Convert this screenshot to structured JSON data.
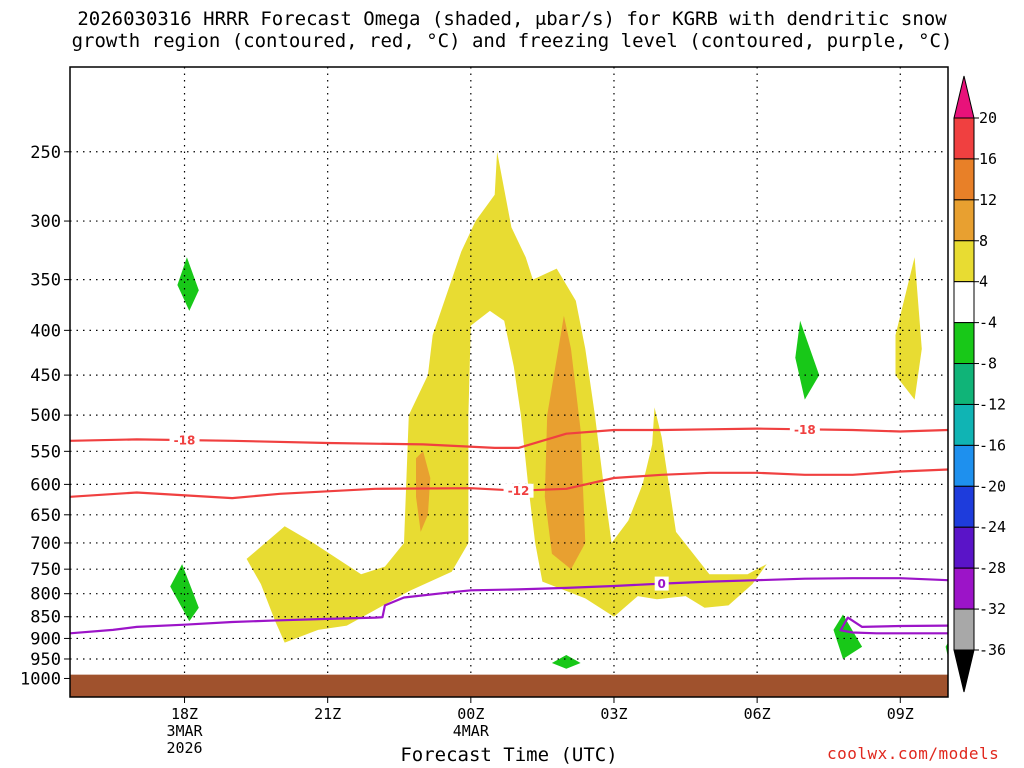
{
  "title": {
    "line1": "2026030316 HRRR Forecast Omega (shaded, μbar/s) for KGRB with dendritic snow",
    "line2": "growth region (contoured, red, °C) and freezing level (contoured, purple, °C)"
  },
  "footer": {
    "xlabel": "Forecast Time (UTC)",
    "credit": "coolwx.com/models"
  },
  "chart_data": {
    "type": "heatmap",
    "x_axis": {
      "label": "Forecast Time (UTC)",
      "range_hours_utc": [
        15.6,
        34.0
      ],
      "ticks": [
        {
          "hour": 18,
          "lines": [
            "18Z",
            "3MAR",
            "2026"
          ]
        },
        {
          "hour": 21,
          "lines": [
            "21Z"
          ]
        },
        {
          "hour": 24,
          "lines": [
            "00Z",
            "4MAR"
          ]
        },
        {
          "hour": 27,
          "lines": [
            "03Z"
          ]
        },
        {
          "hour": 30,
          "lines": [
            "06Z"
          ]
        },
        {
          "hour": 33,
          "lines": [
            "09Z"
          ]
        }
      ]
    },
    "y_axis": {
      "scale": "log",
      "units": "mb",
      "range": [
        1050,
        200
      ],
      "ticks": [
        250,
        300,
        350,
        400,
        450,
        500,
        550,
        600,
        650,
        700,
        750,
        800,
        850,
        900,
        950,
        1000
      ]
    },
    "grid": true,
    "colorbar": {
      "units": "μbar/s",
      "labels": [
        "20",
        "16",
        "12",
        "8",
        "4",
        "-4",
        "-8",
        "-12",
        "-16",
        "-20",
        "-24",
        "-28",
        "-32",
        "-36"
      ],
      "bins": [
        {
          "from": 20,
          "to": 24,
          "color": "#e8127a",
          "shape": "triangle"
        },
        {
          "from": 16,
          "to": 20,
          "color": "#f04040"
        },
        {
          "from": 12,
          "to": 16,
          "color": "#e88028"
        },
        {
          "from": 8,
          "to": 12,
          "color": "#e8a030"
        },
        {
          "from": 4,
          "to": 8,
          "color": "#e8dc32"
        },
        {
          "from": -4,
          "to": 4,
          "color": "#ffffff"
        },
        {
          "from": -8,
          "to": -4,
          "color": "#18c818"
        },
        {
          "from": -12,
          "to": -8,
          "color": "#10b478"
        },
        {
          "from": -16,
          "to": -12,
          "color": "#10b4b4"
        },
        {
          "from": -20,
          "to": -16,
          "color": "#1e90ee"
        },
        {
          "from": -24,
          "to": -20,
          "color": "#1e3cdc"
        },
        {
          "from": -28,
          "to": -24,
          "color": "#5a14c8"
        },
        {
          "from": -32,
          "to": -28,
          "color": "#9c14c8"
        },
        {
          "from": -36,
          "to": -32,
          "color": "#a8a8a8"
        },
        {
          "from": -40,
          "to": -36,
          "color": "#000000",
          "shape": "triangle"
        }
      ]
    },
    "omega_regions": [
      {
        "level": "4 to 8",
        "color": "#e8dc32",
        "points": [
          [
            19.3,
            730
          ],
          [
            20.1,
            670
          ],
          [
            20.7,
            700
          ],
          [
            21.7,
            760
          ],
          [
            22.2,
            745
          ],
          [
            22.6,
            700
          ],
          [
            22.7,
            500
          ],
          [
            23.1,
            450
          ],
          [
            23.2,
            405
          ],
          [
            23.6,
            350
          ],
          [
            23.8,
            325
          ],
          [
            24.1,
            300
          ],
          [
            24.5,
            280
          ],
          [
            24.55,
            250
          ],
          [
            24.85,
            305
          ],
          [
            25.15,
            330
          ],
          [
            25.3,
            350
          ],
          [
            25.8,
            340
          ],
          [
            26.2,
            370
          ],
          [
            26.4,
            420
          ],
          [
            26.6,
            500
          ],
          [
            26.8,
            610
          ],
          [
            26.95,
            700
          ],
          [
            27.3,
            660
          ],
          [
            27.6,
            600
          ],
          [
            27.8,
            540
          ],
          [
            27.85,
            490
          ],
          [
            28.0,
            530
          ],
          [
            28.3,
            680
          ],
          [
            29.0,
            760
          ],
          [
            29.8,
            760
          ],
          [
            30.2,
            740
          ],
          [
            29.9,
            780
          ],
          [
            29.4,
            825
          ],
          [
            28.9,
            830
          ],
          [
            28.5,
            805
          ],
          [
            27.9,
            812
          ],
          [
            27.5,
            805
          ],
          [
            27.0,
            850
          ],
          [
            26.4,
            810
          ],
          [
            25.5,
            775
          ],
          [
            25.35,
            700
          ],
          [
            25.2,
            600
          ],
          [
            25.05,
            500
          ],
          [
            24.9,
            440
          ],
          [
            24.7,
            390
          ],
          [
            24.4,
            380
          ],
          [
            24.0,
            395
          ],
          [
            23.95,
            500
          ],
          [
            23.95,
            700
          ],
          [
            23.6,
            755
          ],
          [
            22.7,
            795
          ],
          [
            21.4,
            870
          ],
          [
            20.8,
            880
          ],
          [
            20.1,
            910
          ],
          [
            19.9,
            860
          ],
          [
            19.6,
            780
          ]
        ]
      },
      {
        "level": "4 to 8",
        "color": "#e8dc32",
        "points": [
          [
            32.9,
            405
          ],
          [
            33.3,
            330
          ],
          [
            33.45,
            420
          ],
          [
            33.3,
            480
          ],
          [
            32.9,
            450
          ]
        ]
      },
      {
        "level": "8 to 12",
        "color": "#e8a030",
        "points": [
          [
            22.85,
            560
          ],
          [
            23.0,
            550
          ],
          [
            23.15,
            590
          ],
          [
            23.1,
            650
          ],
          [
            22.95,
            680
          ],
          [
            22.85,
            620
          ]
        ]
      },
      {
        "level": "8 to 12",
        "color": "#e8a030",
        "points": [
          [
            25.6,
            500
          ],
          [
            25.95,
            385
          ],
          [
            26.1,
            420
          ],
          [
            26.3,
            520
          ],
          [
            26.4,
            700
          ],
          [
            26.1,
            750
          ],
          [
            25.7,
            720
          ],
          [
            25.55,
            620
          ]
        ]
      }
    ],
    "negative_omega_regions": [
      {
        "level": "-8 to -4",
        "color": "#18c818",
        "points": [
          [
            17.85,
            355
          ],
          [
            18.05,
            330
          ],
          [
            18.3,
            360
          ],
          [
            18.1,
            380
          ]
        ]
      },
      {
        "level": "-8 to -4",
        "color": "#18c818",
        "points": [
          [
            17.7,
            785
          ],
          [
            17.95,
            740
          ],
          [
            18.3,
            830
          ],
          [
            18.1,
            860
          ]
        ]
      },
      {
        "level": "-8 to -4",
        "color": "#18c818",
        "points": [
          [
            30.8,
            430
          ],
          [
            30.9,
            390
          ],
          [
            31.3,
            450
          ],
          [
            31.0,
            480
          ]
        ]
      },
      {
        "level": "-8 to -4",
        "color": "#18c818",
        "points": [
          [
            31.6,
            880
          ],
          [
            31.8,
            845
          ],
          [
            32.2,
            920
          ],
          [
            31.8,
            950
          ]
        ]
      },
      {
        "level": "-8 to -4",
        "color": "#18c818",
        "points": [
          [
            25.7,
            960
          ],
          [
            26.0,
            940
          ],
          [
            26.3,
            960
          ],
          [
            26.0,
            975
          ]
        ]
      },
      {
        "level": "-8 to -4",
        "color": "#18c818",
        "points": [
          [
            33.95,
            920
          ],
          [
            34.0,
            910
          ],
          [
            34.0,
            945
          ]
        ]
      }
    ],
    "contours": [
      {
        "name": "-18",
        "label": "-18",
        "color": "#f04040",
        "label_at": [
          18,
          31
        ],
        "x": [
          15.6,
          17.0,
          19.0,
          21.0,
          23.0,
          24.5,
          25.0,
          26.0,
          27.0,
          28.0,
          29.0,
          30.0,
          31.0,
          32.0,
          33.0,
          34.0
        ],
        "y": [
          535,
          533,
          535,
          538,
          540,
          545,
          545,
          525,
          520,
          520,
          519,
          518,
          519,
          520,
          522,
          520
        ]
      },
      {
        "name": "-12",
        "label": "-12",
        "color": "#f04040",
        "label_at": [
          25
        ],
        "x": [
          15.6,
          17.0,
          19.0,
          20.0,
          22.0,
          24.0,
          25.0,
          26.0,
          27.0,
          28.0,
          29.0,
          30.0,
          31.0,
          32.0,
          33.0,
          34.0
        ],
        "y": [
          620,
          613,
          622,
          615,
          607,
          606,
          610,
          607,
          590,
          585,
          582,
          582,
          585,
          585,
          580,
          577
        ]
      },
      {
        "name": "0",
        "label": "0",
        "color": "#9c14c8",
        "label_at": [
          28.0
        ],
        "x": [
          15.6,
          16.5,
          17.0,
          18.0,
          19.0,
          20.0,
          21.0,
          22.0,
          22.15,
          22.2,
          22.6,
          23.5,
          24.0,
          25.0,
          26.0,
          27.0,
          28.0,
          29.0,
          30.0,
          31.0,
          32.0,
          33.0,
          34.0
        ],
        "y": [
          888,
          880,
          873,
          868,
          862,
          858,
          855,
          852,
          851,
          825,
          808,
          798,
          793,
          791,
          788,
          784,
          779,
          775,
          772,
          769,
          768,
          768,
          772
        ]
      },
      {
        "name": "0-closed",
        "label": "",
        "color": "#9c14c8",
        "label_at": [],
        "x": [
          34.0,
          33.0,
          32.2,
          31.9,
          31.75,
          32.0,
          32.5,
          33.0,
          34.0
        ],
        "y": [
          870,
          871,
          873,
          852,
          881,
          886,
          888,
          888,
          888
        ]
      }
    ],
    "terrain": {
      "color": "#a0522d",
      "surface_mb": 990
    }
  }
}
